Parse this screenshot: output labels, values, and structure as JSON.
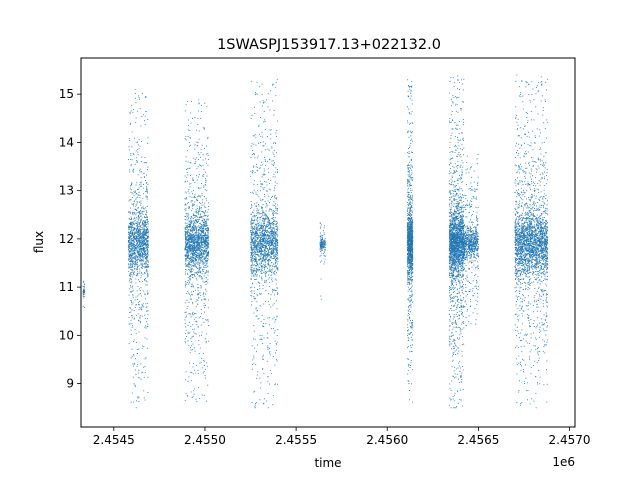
{
  "chart_data": {
    "type": "scatter",
    "title": "1SWASPJ153917.13+022132.0",
    "xlabel": "time",
    "ylabel": "flux",
    "x_offset_label": "1e6",
    "xlim": [
      2454320,
      2457030
    ],
    "ylim": [
      8.1,
      15.75
    ],
    "x_ticks": [
      2.4545,
      2.455,
      2.4555,
      2.456,
      2.4565,
      2.457
    ],
    "x_tick_labels": [
      "2.4545",
      "2.4550",
      "2.4555",
      "2.4560",
      "2.4565",
      "2.4570"
    ],
    "y_ticks": [
      9,
      10,
      11,
      12,
      13,
      14,
      15
    ],
    "y_tick_labels": [
      "9",
      "10",
      "11",
      "12",
      "13",
      "14",
      "15"
    ],
    "grid": false,
    "point_color": "#1f77b4",
    "observing_seasons": [
      {
        "x_start": 2454330,
        "x_end": 2454340,
        "y_center": 10.9,
        "y_min": 10.3,
        "y_max": 11.3,
        "count": 40
      },
      {
        "x_start": 2454580,
        "x_end": 2454690,
        "y_center": 11.9,
        "y_min": 8.5,
        "y_max": 15.1,
        "count": 1500
      },
      {
        "x_start": 2454890,
        "x_end": 2455020,
        "y_center": 11.9,
        "y_min": 8.6,
        "y_max": 14.9,
        "count": 1800
      },
      {
        "x_start": 2455250,
        "x_end": 2455400,
        "y_center": 11.9,
        "y_min": 8.5,
        "y_max": 15.4,
        "count": 1700
      },
      {
        "x_start": 2455630,
        "x_end": 2455660,
        "y_center": 11.9,
        "y_min": 10.4,
        "y_max": 12.5,
        "count": 150
      },
      {
        "x_start": 2456110,
        "x_end": 2456140,
        "y_center": 11.9,
        "y_min": 8.5,
        "y_max": 15.3,
        "count": 1200
      },
      {
        "x_start": 2456340,
        "x_end": 2456420,
        "y_center": 11.9,
        "y_min": 8.5,
        "y_max": 15.4,
        "count": 2200
      },
      {
        "x_start": 2456420,
        "x_end": 2456500,
        "y_center": 11.9,
        "y_min": 10.2,
        "y_max": 13.8,
        "count": 700
      },
      {
        "x_start": 2456700,
        "x_end": 2456880,
        "y_center": 11.9,
        "y_min": 8.5,
        "y_max": 15.4,
        "count": 2600
      }
    ]
  }
}
